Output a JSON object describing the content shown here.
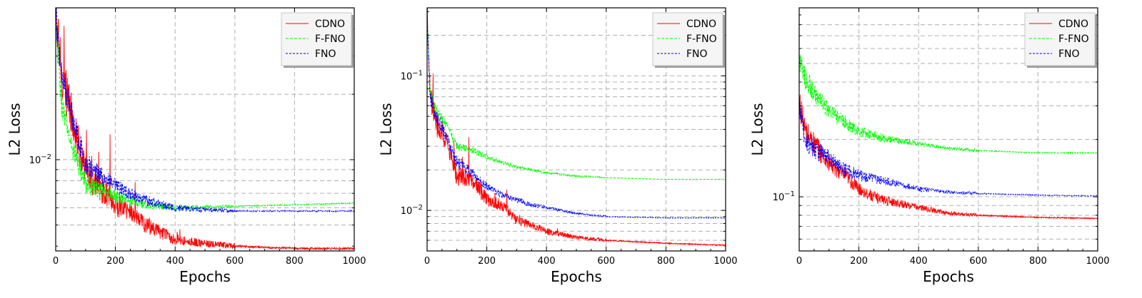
{
  "chart_data": [
    {
      "type": "line",
      "title": "",
      "xlabel": "Epochs",
      "ylabel": "L2 Loss",
      "yscale": "log",
      "xlim": [
        0,
        1000
      ],
      "ylim": [
        0.0038,
        0.05
      ],
      "xticks": [
        0,
        200,
        400,
        600,
        800,
        1000
      ],
      "xtick_labels": [
        "0",
        "200",
        "400",
        "600",
        "800",
        "1000"
      ],
      "ytick_labels": [
        {
          "value": 0.01,
          "base": "10",
          "exp": "−2"
        }
      ],
      "hgrid": [
        0.005,
        0.006,
        0.007,
        0.008,
        0.009,
        0.01,
        0.02
      ],
      "legend": {
        "position": "top-right",
        "entries": [
          "CDNO",
          "F-FNO",
          "FNO"
        ]
      },
      "series": [
        {
          "name": "CDNO",
          "color": "#ff0000",
          "dash": "solid",
          "noise": 0.22,
          "spikes": true,
          "x": [
            0,
            20,
            50,
            100,
            150,
            200,
            250,
            300,
            400,
            500,
            600,
            800,
            1000
          ],
          "y": [
            0.045,
            0.025,
            0.017,
            0.0085,
            0.0075,
            0.0062,
            0.0058,
            0.005,
            0.0043,
            0.0041,
            0.004,
            0.0039,
            0.0039
          ]
        },
        {
          "name": "F-FNO",
          "color": "#00ff00",
          "dash": "4 2",
          "noise": 0.12,
          "spikes": false,
          "x": [
            0,
            20,
            50,
            100,
            150,
            200,
            300,
            400,
            600,
            800,
            1000
          ],
          "y": [
            0.04,
            0.018,
            0.012,
            0.0078,
            0.0072,
            0.0068,
            0.0062,
            0.006,
            0.0061,
            0.0062,
            0.0063
          ]
        },
        {
          "name": "FNO",
          "color": "#0000ff",
          "dash": "3 2",
          "noise": 0.14,
          "spikes": false,
          "x": [
            0,
            20,
            50,
            100,
            150,
            200,
            300,
            400,
            500,
            600,
            800,
            1000
          ],
          "y": [
            0.045,
            0.025,
            0.017,
            0.0095,
            0.0085,
            0.0075,
            0.0065,
            0.006,
            0.0059,
            0.0058,
            0.0058,
            0.0058
          ]
        }
      ]
    },
    {
      "type": "line",
      "title": "",
      "xlabel": "Epochs",
      "ylabel": "L2 Loss",
      "yscale": "log",
      "xlim": [
        0,
        1000
      ],
      "ylim": [
        0.005,
        0.32
      ],
      "xticks": [
        0,
        200,
        400,
        600,
        800,
        1000
      ],
      "xtick_labels": [
        "0",
        "200",
        "400",
        "600",
        "800",
        "1000"
      ],
      "ytick_labels": [
        {
          "value": 0.1,
          "base": "10",
          "exp": "−1"
        },
        {
          "value": 0.01,
          "base": "10",
          "exp": "−2"
        }
      ],
      "hgrid": [
        0.006,
        0.007,
        0.008,
        0.009,
        0.01,
        0.02,
        0.03,
        0.04,
        0.05,
        0.06,
        0.07,
        0.08,
        0.09,
        0.1,
        0.2
      ],
      "legend": {
        "position": "top-right",
        "entries": [
          "CDNO",
          "F-FNO",
          "FNO"
        ]
      },
      "series": [
        {
          "name": "CDNO",
          "color": "#ff0000",
          "dash": "solid",
          "noise": 0.2,
          "spikes": true,
          "x": [
            0,
            10,
            30,
            60,
            100,
            150,
            200,
            250,
            300,
            350,
            400,
            500,
            600,
            800,
            1000
          ],
          "y": [
            0.3,
            0.07,
            0.045,
            0.035,
            0.018,
            0.017,
            0.012,
            0.011,
            0.0085,
            0.0078,
            0.007,
            0.0063,
            0.006,
            0.0057,
            0.0055
          ]
        },
        {
          "name": "F-FNO",
          "color": "#00ff00",
          "dash": "4 2",
          "noise": 0.08,
          "spikes": false,
          "x": [
            0,
            10,
            30,
            60,
            100,
            150,
            200,
            300,
            400,
            500,
            600,
            800,
            1000
          ],
          "y": [
            0.3,
            0.08,
            0.055,
            0.045,
            0.03,
            0.028,
            0.025,
            0.021,
            0.019,
            0.018,
            0.0175,
            0.017,
            0.017
          ]
        },
        {
          "name": "FNO",
          "color": "#0000ff",
          "dash": "3 2",
          "noise": 0.12,
          "spikes": false,
          "x": [
            0,
            10,
            30,
            60,
            100,
            150,
            200,
            250,
            300,
            350,
            400,
            500,
            600,
            800,
            1000
          ],
          "y": [
            0.3,
            0.07,
            0.05,
            0.038,
            0.023,
            0.019,
            0.015,
            0.013,
            0.012,
            0.011,
            0.0105,
            0.0095,
            0.009,
            0.0088,
            0.0088
          ]
        }
      ]
    },
    {
      "type": "line",
      "title": "",
      "xlabel": "Epochs",
      "ylabel": "L2 Loss",
      "yscale": "log",
      "xlim": [
        0,
        1000
      ],
      "ylim": [
        0.052,
        0.98
      ],
      "xticks": [
        0,
        200,
        400,
        600,
        800,
        1000
      ],
      "xtick_labels": [
        "0",
        "200",
        "400",
        "600",
        "800",
        "1000"
      ],
      "ytick_labels": [
        {
          "value": 0.1,
          "base": "10",
          "exp": "−1"
        }
      ],
      "hgrid": [
        0.06,
        0.07,
        0.08,
        0.09,
        0.1,
        0.2,
        0.3,
        0.4,
        0.5,
        0.6,
        0.7,
        0.8
      ],
      "legend": {
        "position": "top-right",
        "entries": [
          "CDNO",
          "F-FNO",
          "FNO"
        ]
      },
      "series": [
        {
          "name": "CDNO",
          "color": "#ff0000",
          "dash": "solid",
          "noise": 0.14,
          "spikes": false,
          "x": [
            0,
            20,
            50,
            100,
            150,
            200,
            250,
            300,
            400,
            500,
            600,
            800,
            1000
          ],
          "y": [
            0.32,
            0.22,
            0.19,
            0.15,
            0.13,
            0.11,
            0.1,
            0.095,
            0.088,
            0.082,
            0.08,
            0.078,
            0.077
          ]
        },
        {
          "name": "F-FNO",
          "color": "#00ff00",
          "dash": "4 2",
          "noise": 0.12,
          "spikes": false,
          "x": [
            0,
            10,
            50,
            100,
            200,
            300,
            400,
            500,
            600,
            800,
            1000
          ],
          "y": [
            0.55,
            0.45,
            0.35,
            0.28,
            0.22,
            0.2,
            0.19,
            0.18,
            0.175,
            0.17,
            0.17
          ]
        },
        {
          "name": "FNO",
          "color": "#0000ff",
          "dash": "3 2",
          "noise": 0.12,
          "spikes": false,
          "x": [
            0,
            20,
            50,
            100,
            150,
            200,
            300,
            400,
            500,
            600,
            800,
            1000
          ],
          "y": [
            0.3,
            0.2,
            0.18,
            0.16,
            0.14,
            0.13,
            0.12,
            0.11,
            0.106,
            0.104,
            0.102,
            0.101
          ]
        }
      ]
    }
  ]
}
